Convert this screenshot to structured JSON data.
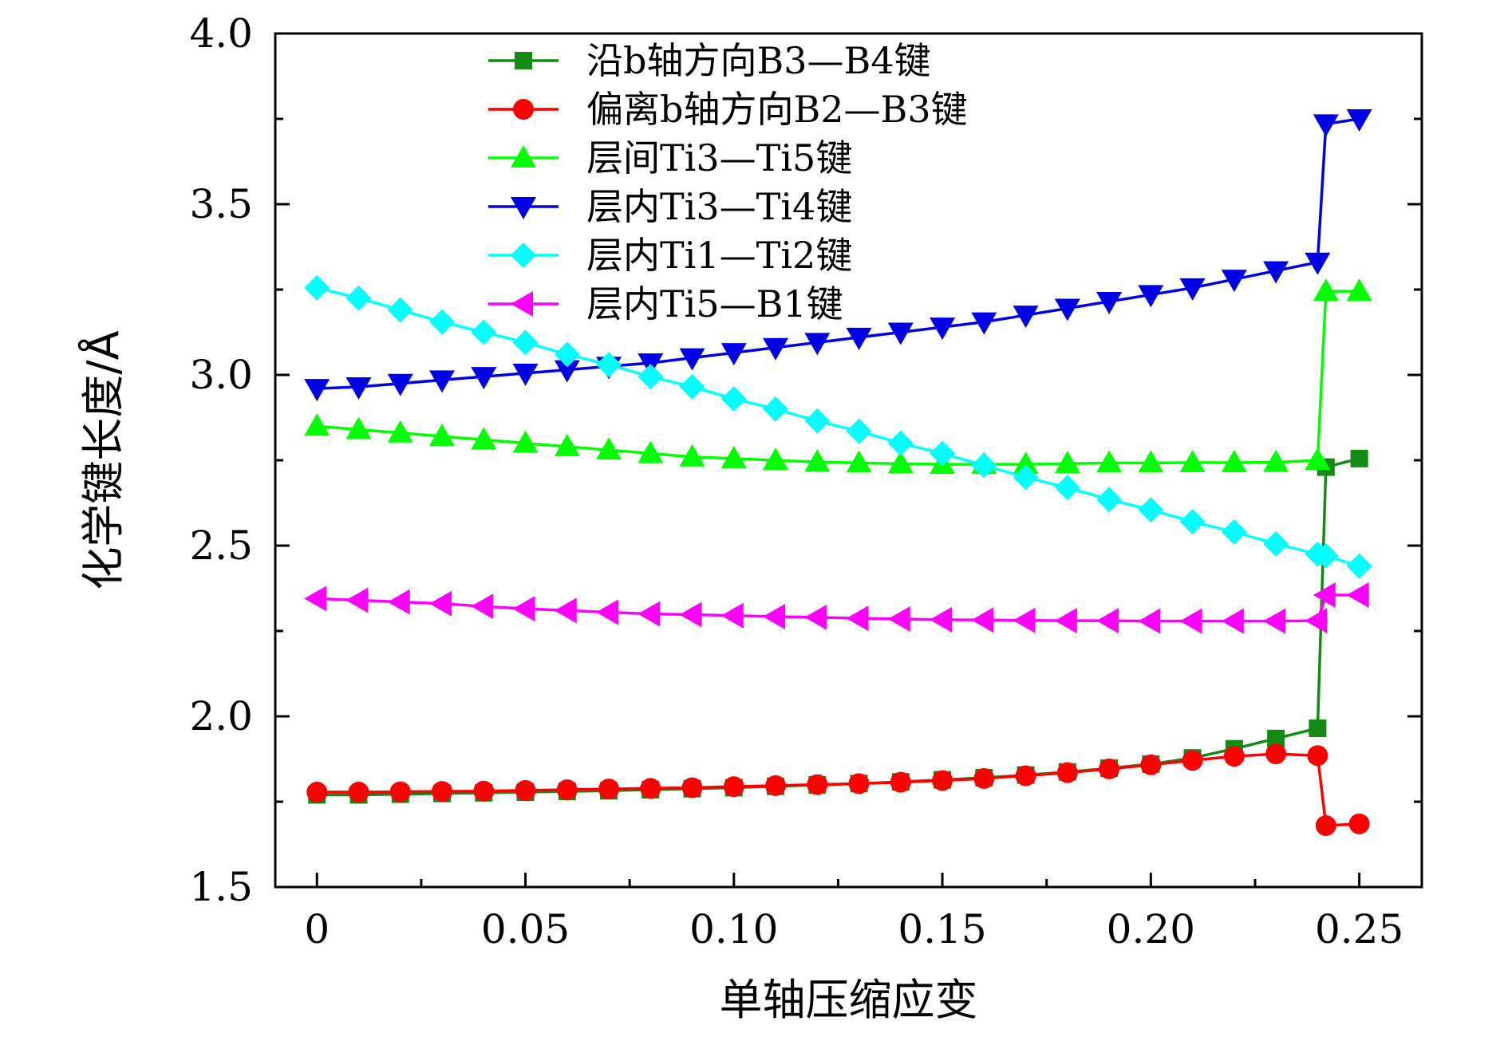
{
  "chart_data": {
    "type": "line",
    "xlabel": "单轴压缩应变",
    "ylabel": "化学键长度/Å",
    "xlim": [
      -0.01,
      0.265
    ],
    "ylim": [
      1.5,
      4.0
    ],
    "xticks": [
      0,
      0.05,
      0.1,
      0.15,
      0.2,
      0.25
    ],
    "xtick_labels": [
      "0",
      "0.05",
      "0.10",
      "0.15",
      "0.20",
      "0.25"
    ],
    "yticks": [
      1.5,
      2.0,
      2.5,
      3.0,
      3.5,
      4.0
    ],
    "ytick_labels": [
      "1.5",
      "2.0",
      "2.5",
      "3.0",
      "3.5",
      "4.0"
    ],
    "legend_position": "top-center",
    "x": [
      0,
      0.01,
      0.02,
      0.03,
      0.04,
      0.05,
      0.06,
      0.07,
      0.08,
      0.09,
      0.1,
      0.11,
      0.12,
      0.13,
      0.14,
      0.15,
      0.16,
      0.17,
      0.18,
      0.19,
      0.2,
      0.21,
      0.22,
      0.23,
      0.24,
      0.242,
      0.25
    ],
    "series": [
      {
        "name": "沿b轴方向B3—B4键",
        "color": "#138a13",
        "marker": "square",
        "values": [
          1.77,
          1.77,
          1.772,
          1.774,
          1.776,
          1.778,
          1.78,
          1.782,
          1.785,
          1.788,
          1.791,
          1.795,
          1.799,
          1.803,
          1.808,
          1.814,
          1.82,
          1.828,
          1.837,
          1.848,
          1.86,
          1.878,
          1.905,
          1.935,
          1.965,
          2.73,
          2.755
        ]
      },
      {
        "name": "偏离b轴方向B2—B3键",
        "color": "#ff0000",
        "marker": "circle",
        "values": [
          1.778,
          1.778,
          1.779,
          1.78,
          1.781,
          1.783,
          1.785,
          1.787,
          1.789,
          1.791,
          1.794,
          1.797,
          1.8,
          1.803,
          1.807,
          1.812,
          1.818,
          1.826,
          1.835,
          1.846,
          1.858,
          1.871,
          1.883,
          1.89,
          1.885,
          1.68,
          1.685
        ]
      },
      {
        "name": "层间Ti3—Ti5键",
        "color": "#00ff00",
        "marker": "triangle-up",
        "values": [
          2.85,
          2.84,
          2.83,
          2.82,
          2.81,
          2.8,
          2.79,
          2.78,
          2.77,
          2.76,
          2.755,
          2.75,
          2.745,
          2.742,
          2.74,
          2.738,
          2.738,
          2.738,
          2.74,
          2.742,
          2.742,
          2.743,
          2.743,
          2.744,
          2.75,
          3.245,
          3.245
        ]
      },
      {
        "name": "层内Ti3—Ti4键",
        "color": "#0000e6",
        "marker": "triangle-down",
        "values": [
          2.96,
          2.965,
          2.975,
          2.985,
          2.995,
          3.005,
          3.015,
          3.025,
          3.035,
          3.05,
          3.065,
          3.08,
          3.095,
          3.11,
          3.125,
          3.14,
          3.155,
          3.175,
          3.195,
          3.215,
          3.235,
          3.255,
          3.28,
          3.305,
          3.33,
          3.735,
          3.75
        ]
      },
      {
        "name": "层内Ti1—Ti2键",
        "color": "#00ffff",
        "marker": "diamond",
        "values": [
          3.255,
          3.225,
          3.19,
          3.155,
          3.125,
          3.095,
          3.06,
          3.03,
          2.995,
          2.965,
          2.93,
          2.9,
          2.865,
          2.835,
          2.8,
          2.77,
          2.735,
          2.7,
          2.67,
          2.635,
          2.605,
          2.57,
          2.54,
          2.505,
          2.475,
          2.47,
          2.44
        ]
      },
      {
        "name": "层内Ti5—B1键",
        "color": "#ff00ff",
        "marker": "triangle-left",
        "values": [
          2.345,
          2.34,
          2.335,
          2.33,
          2.322,
          2.315,
          2.31,
          2.305,
          2.3,
          2.298,
          2.295,
          2.292,
          2.29,
          2.287,
          2.285,
          2.283,
          2.282,
          2.281,
          2.28,
          2.28,
          2.279,
          2.279,
          2.279,
          2.279,
          2.28,
          2.355,
          2.355
        ]
      }
    ]
  }
}
